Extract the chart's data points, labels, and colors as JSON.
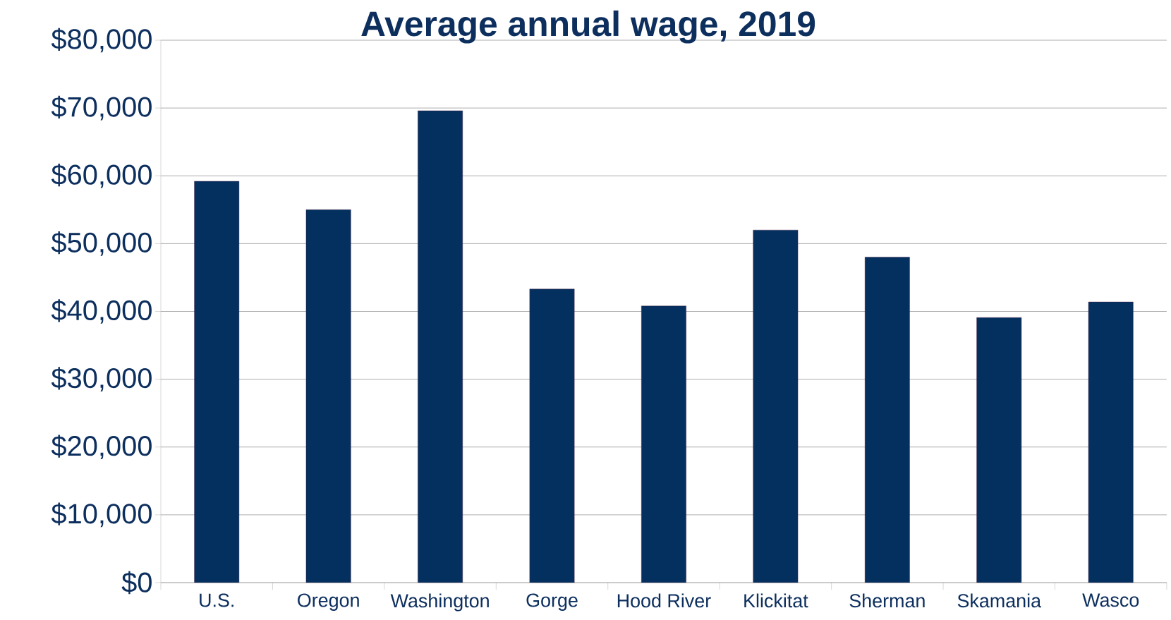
{
  "chart_data": {
    "type": "bar",
    "title": "Average annual wage, 2019",
    "categories": [
      "U.S.",
      "Oregon",
      "Washington",
      "Gorge",
      "Hood River",
      "Klickitat",
      "Sherman",
      "Skamania",
      "Wasco"
    ],
    "values": [
      59200,
      55000,
      69600,
      43300,
      40800,
      52000,
      48000,
      39100,
      41400
    ],
    "color": "#04305f",
    "ylim": [
      0,
      80000
    ],
    "yticks": [
      {
        "value": 0,
        "label": "$0"
      },
      {
        "value": 10000,
        "label": "$10,000"
      },
      {
        "value": 20000,
        "label": "$20,000"
      },
      {
        "value": 30000,
        "label": "$30,000"
      },
      {
        "value": 40000,
        "label": "$40,000"
      },
      {
        "value": 50000,
        "label": "$50,000"
      },
      {
        "value": 60000,
        "label": "$60,000"
      },
      {
        "value": 70000,
        "label": "$70,000"
      },
      {
        "value": 80000,
        "label": "$80,000"
      }
    ],
    "grid": "y"
  }
}
